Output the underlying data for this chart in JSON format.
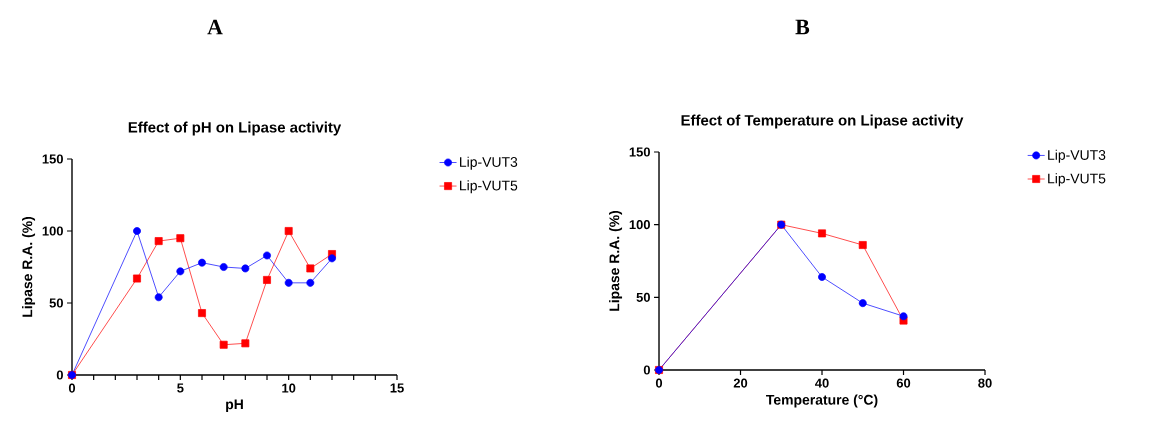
{
  "chart_data": [
    {
      "type": "line",
      "title": "Effect of pH on Lipase activity",
      "xlabel": "pH",
      "ylabel": "Lipase R.A. (%)",
      "annotations": [
        "A"
      ],
      "xlim": [
        0,
        15
      ],
      "xticks": [
        0,
        {
          "value": 1,
          "label": null
        },
        {
          "value": 2,
          "label": null
        },
        {
          "value": 3,
          "label": null
        },
        {
          "value": 4,
          "label": null
        },
        5,
        {
          "value": 6,
          "label": null
        },
        {
          "value": 7,
          "label": null
        },
        {
          "value": 8,
          "label": null
        },
        {
          "value": 9,
          "label": null
        },
        10,
        {
          "value": 11,
          "label": null
        },
        {
          "value": 12,
          "label": null
        },
        {
          "value": 13,
          "label": null
        },
        {
          "value": 14,
          "label": null
        },
        15
      ],
      "ylim": [
        0,
        150
      ],
      "yticks": [
        0,
        50,
        100,
        150
      ],
      "legend": "right",
      "grid": false,
      "series": [
        {
          "name": "Lip-VUT3",
          "color": "#0000ff",
          "marker": "circle",
          "x": [
            0,
            3,
            4,
            5,
            6,
            7,
            8,
            9,
            10,
            11,
            12
          ],
          "values": [
            0,
            100,
            54,
            72,
            78,
            75,
            74,
            83,
            64,
            64,
            81
          ]
        },
        {
          "name": "Lip-VUT5",
          "color": "#ff0000",
          "marker": "square",
          "x": [
            0,
            3,
            4,
            5,
            6,
            7,
            8,
            9,
            10,
            11,
            12
          ],
          "values": [
            0,
            67,
            93,
            95,
            43,
            21,
            22,
            66,
            100,
            74,
            84
          ]
        }
      ]
    },
    {
      "type": "line",
      "title": "Effect of Temperature on Lipase activity",
      "xlabel": "Temperature (°C)",
      "ylabel": "Lipase R.A. (%)",
      "annotations": [
        "B"
      ],
      "xlim": [
        0,
        80
      ],
      "xticks": [
        0,
        20,
        40,
        60,
        80
      ],
      "ylim": [
        0,
        150
      ],
      "yticks": [
        0,
        50,
        100,
        150
      ],
      "legend": "right",
      "grid": false,
      "series": [
        {
          "name": "Lip-VUT3",
          "color": "#0000ff",
          "marker": "circle",
          "x": [
            0,
            30,
            40,
            50,
            60
          ],
          "values": [
            0,
            100,
            64,
            46,
            37
          ]
        },
        {
          "name": "Lip-VUT5",
          "color": "#ff0000",
          "marker": "square",
          "x": [
            0,
            30,
            40,
            50,
            60
          ],
          "values": [
            0,
            100,
            94,
            86,
            34
          ]
        }
      ]
    }
  ]
}
